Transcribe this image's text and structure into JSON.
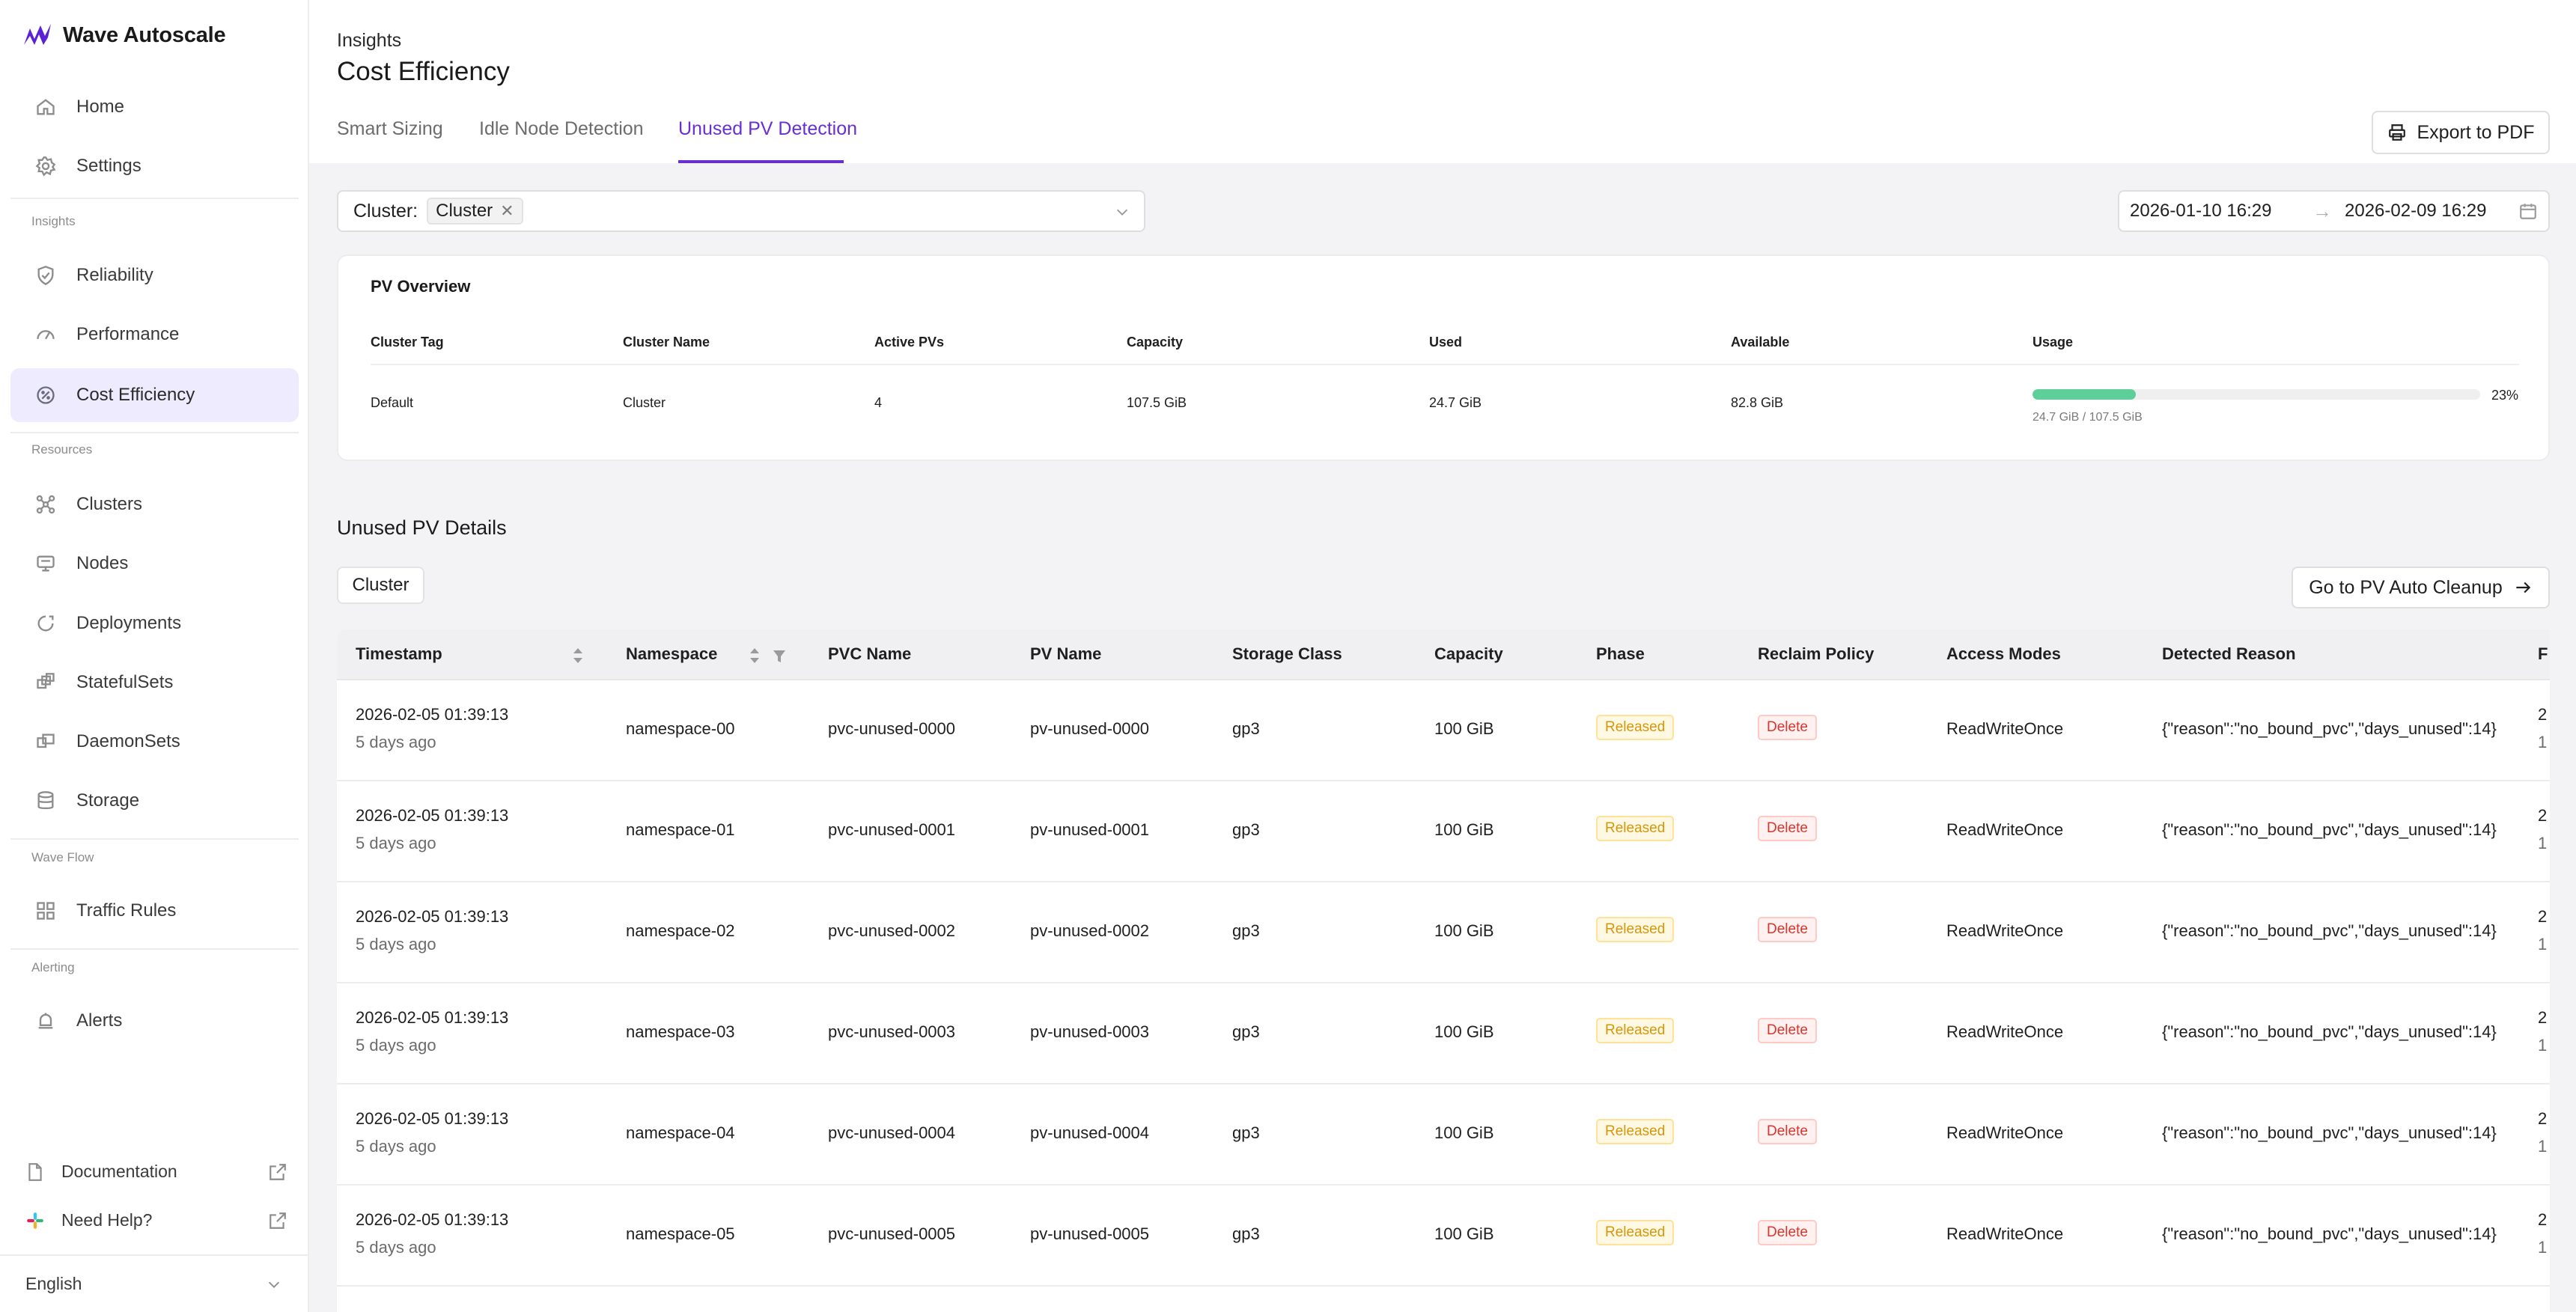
{
  "app": {
    "name": "Wave Autoscale"
  },
  "sidebar": {
    "main_items": [
      {
        "label": "Home",
        "icon": "home-icon"
      },
      {
        "label": "Settings",
        "icon": "gear-icon"
      }
    ],
    "sections": [
      {
        "label": "Insights",
        "items": [
          {
            "label": "Reliability",
            "icon": "shield-icon"
          },
          {
            "label": "Performance",
            "icon": "gauge-icon"
          },
          {
            "label": "Cost Efficiency",
            "icon": "cost-icon",
            "active": true
          }
        ]
      },
      {
        "label": "Resources",
        "items": [
          {
            "label": "Clusters",
            "icon": "cluster-icon"
          },
          {
            "label": "Nodes",
            "icon": "node-icon"
          },
          {
            "label": "Deployments",
            "icon": "deployment-icon"
          },
          {
            "label": "StatefulSets",
            "icon": "statefulset-icon"
          },
          {
            "label": "DaemonSets",
            "icon": "daemonset-icon"
          },
          {
            "label": "Storage",
            "icon": "database-icon"
          }
        ]
      },
      {
        "label": "Wave Flow",
        "items": [
          {
            "label": "Traffic Rules",
            "icon": "traffic-rules-icon"
          }
        ]
      },
      {
        "label": "Alerting",
        "items": [
          {
            "label": "Alerts",
            "icon": "bell-icon"
          }
        ]
      }
    ],
    "bottom": [
      {
        "label": "Documentation",
        "icon": "document-icon"
      },
      {
        "label": "Need Help?",
        "icon": "slack-icon"
      }
    ],
    "language": "English"
  },
  "header": {
    "breadcrumb": "Insights",
    "title": "Cost Efficiency",
    "tabs": [
      "Smart Sizing",
      "Idle Node Detection",
      "Unused PV Detection"
    ],
    "active_tab": 2,
    "export_label": "Export to PDF"
  },
  "filters": {
    "cluster_label": "Cluster:",
    "cluster_tag": "Cluster",
    "date_start": "2026-01-10 16:29",
    "date_arrow": "→",
    "date_end": "2026-02-09 16:29"
  },
  "overview": {
    "title": "PV Overview",
    "headers": [
      "Cluster Tag",
      "Cluster Name",
      "Active PVs",
      "Capacity",
      "Used",
      "Available",
      "Usage"
    ],
    "row": {
      "cluster_tag": "Default",
      "cluster_name": "Cluster",
      "active_pvs": "4",
      "capacity": "107.5 GiB",
      "used": "24.7 GiB",
      "available": "82.8 GiB",
      "usage_percent": "23%",
      "usage_fraction": 0.23,
      "usage_detail": "24.7 GiB / 107.5 GiB"
    },
    "usage_color": "#5fcf9a"
  },
  "details": {
    "title": "Unused PV Details",
    "filter_chip": "Cluster",
    "cleanup_label": "Go to PV Auto Cleanup",
    "columns": [
      "Timestamp",
      "Namespace",
      "PVC Name",
      "PV Name",
      "Storage Class",
      "Capacity",
      "Phase",
      "Reclaim Policy",
      "Access Modes",
      "Detected Reason",
      "F"
    ],
    "rows": [
      {
        "timestamp": "2026-02-05 01:39:13",
        "ago": "5 days ago",
        "namespace": "namespace-00",
        "pvc": "pvc-unused-0000",
        "pv": "pv-unused-0000",
        "storage_class": "gp3",
        "capacity": "100 GiB",
        "phase": "Released",
        "reclaim": "Delete",
        "access": "ReadWriteOnce",
        "reason": "{\"reason\":\"no_bound_pvc\",\"days_unused\":14}",
        "extra1": "2",
        "extra2": "1"
      },
      {
        "timestamp": "2026-02-05 01:39:13",
        "ago": "5 days ago",
        "namespace": "namespace-01",
        "pvc": "pvc-unused-0001",
        "pv": "pv-unused-0001",
        "storage_class": "gp3",
        "capacity": "100 GiB",
        "phase": "Released",
        "reclaim": "Delete",
        "access": "ReadWriteOnce",
        "reason": "{\"reason\":\"no_bound_pvc\",\"days_unused\":14}",
        "extra1": "2",
        "extra2": "1"
      },
      {
        "timestamp": "2026-02-05 01:39:13",
        "ago": "5 days ago",
        "namespace": "namespace-02",
        "pvc": "pvc-unused-0002",
        "pv": "pv-unused-0002",
        "storage_class": "gp3",
        "capacity": "100 GiB",
        "phase": "Released",
        "reclaim": "Delete",
        "access": "ReadWriteOnce",
        "reason": "{\"reason\":\"no_bound_pvc\",\"days_unused\":14}",
        "extra1": "2",
        "extra2": "1"
      },
      {
        "timestamp": "2026-02-05 01:39:13",
        "ago": "5 days ago",
        "namespace": "namespace-03",
        "pvc": "pvc-unused-0003",
        "pv": "pv-unused-0003",
        "storage_class": "gp3",
        "capacity": "100 GiB",
        "phase": "Released",
        "reclaim": "Delete",
        "access": "ReadWriteOnce",
        "reason": "{\"reason\":\"no_bound_pvc\",\"days_unused\":14}",
        "extra1": "2",
        "extra2": "1"
      },
      {
        "timestamp": "2026-02-05 01:39:13",
        "ago": "5 days ago",
        "namespace": "namespace-04",
        "pvc": "pvc-unused-0004",
        "pv": "pv-unused-0004",
        "storage_class": "gp3",
        "capacity": "100 GiB",
        "phase": "Released",
        "reclaim": "Delete",
        "access": "ReadWriteOnce",
        "reason": "{\"reason\":\"no_bound_pvc\",\"days_unused\":14}",
        "extra1": "2",
        "extra2": "1"
      },
      {
        "timestamp": "2026-02-05 01:39:13",
        "ago": "5 days ago",
        "namespace": "namespace-05",
        "pvc": "pvc-unused-0005",
        "pv": "pv-unused-0005",
        "storage_class": "gp3",
        "capacity": "100 GiB",
        "phase": "Released",
        "reclaim": "Delete",
        "access": "ReadWriteOnce",
        "reason": "{\"reason\":\"no_bound_pvc\",\"days_unused\":14}",
        "extra1": "2",
        "extra2": "1"
      }
    ]
  },
  "colors": {
    "accent": "#6a2fd1",
    "active_nav_bg": "#efebff",
    "released": "#d6960a",
    "delete": "#d9352e"
  }
}
